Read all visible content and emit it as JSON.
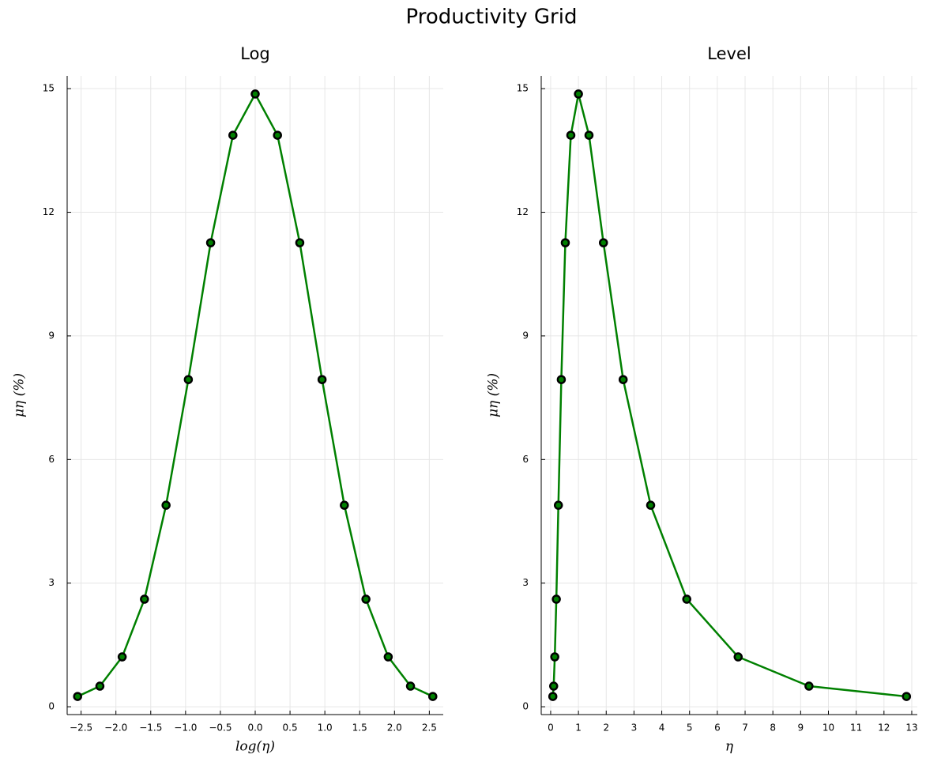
{
  "title": "Productivity Grid",
  "chart_data": [
    {
      "type": "line",
      "title": "Log",
      "xlabel": "log(η)",
      "ylabel": "μη (%)",
      "x": [
        -2.55,
        -2.23,
        -1.91,
        -1.59,
        -1.28,
        -0.96,
        -0.64,
        -0.32,
        0,
        0.32,
        0.64,
        0.96,
        1.28,
        1.59,
        1.91,
        2.23,
        2.55
      ],
      "values": [
        0.25,
        0.5,
        1.21,
        2.61,
        4.89,
        7.94,
        11.26,
        13.87,
        14.87,
        13.87,
        11.26,
        7.94,
        4.89,
        2.61,
        1.21,
        0.5,
        0.25
      ],
      "color": "#008000",
      "marker_edge": "#000000",
      "markers": true,
      "xlim": [
        -2.7,
        2.7
      ],
      "ylim": [
        -0.19,
        15.31
      ],
      "xticks": [
        {
          "value": -2.5,
          "label": "−2.5"
        },
        {
          "value": -2.0,
          "label": "−2.0"
        },
        {
          "value": -1.5,
          "label": "−1.5"
        },
        {
          "value": -1.0,
          "label": "−1.0"
        },
        {
          "value": -0.5,
          "label": "−0.5"
        },
        {
          "value": 0,
          "label": "0.0"
        },
        0.5,
        {
          "value": 1,
          "label": "1.0"
        },
        1.5,
        {
          "value": 2,
          "label": "2.0"
        },
        2.5
      ],
      "yticks": [
        0,
        3,
        6,
        9,
        12,
        15
      ],
      "grid": true
    },
    {
      "type": "line",
      "title": "Level",
      "xlabel": "η",
      "ylabel": "μη (%)",
      "x": [
        0.078,
        0.108,
        0.148,
        0.204,
        0.278,
        0.383,
        0.527,
        0.726,
        1,
        1.38,
        1.9,
        2.61,
        3.6,
        4.9,
        6.75,
        9.3,
        12.81
      ],
      "values": [
        0.25,
        0.5,
        1.21,
        2.61,
        4.89,
        7.94,
        11.26,
        13.87,
        14.87,
        13.87,
        11.26,
        7.94,
        4.89,
        2.61,
        1.21,
        0.5,
        0.25
      ],
      "color": "#008000",
      "marker_edge": "#000000",
      "markers": true,
      "xlim": [
        -0.34,
        13.2
      ],
      "ylim": [
        -0.19,
        15.31
      ],
      "xticks": [
        0,
        1,
        2,
        3,
        4,
        5,
        6,
        7,
        8,
        9,
        10,
        11,
        12,
        13
      ],
      "yticks": [
        0,
        3,
        6,
        9,
        12,
        15
      ],
      "grid": true
    }
  ]
}
